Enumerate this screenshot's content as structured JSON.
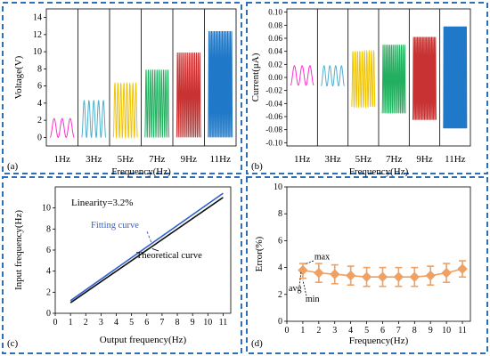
{
  "colors": {
    "frame": "#2f6fb7",
    "waves": [
      "#ff2fd0",
      "#4fb0d0",
      "#f0c400",
      "#22b060",
      "#c83232",
      "#1f78c8"
    ],
    "fit_line": "#2f5fd0",
    "theory_line": "#111111",
    "error_marker": "#f0a060"
  },
  "chart_data": [
    {
      "panel": "(a)",
      "type": "line",
      "title": "",
      "xlabel": "Frequency(Hz)",
      "ylabel": "Voltage(V)",
      "ylim": [
        -1,
        15
      ],
      "yticks": [
        0,
        2,
        4,
        6,
        8,
        10,
        12,
        14
      ],
      "categories": [
        "1Hz",
        "3Hz",
        "5Hz",
        "7Hz",
        "9Hz",
        "11Hz"
      ],
      "amplitude_min": [
        0,
        0,
        0,
        0,
        0,
        0
      ],
      "amplitude_max": [
        2.2,
        4.3,
        6.3,
        7.9,
        9.9,
        12.4
      ],
      "cycles": [
        3,
        5,
        8,
        11,
        14,
        18
      ]
    },
    {
      "panel": "(b)",
      "type": "line",
      "title": "",
      "xlabel": "Frequency(Hz)",
      "ylabel": "Current(μA)",
      "ylim": [
        -0.105,
        0.105
      ],
      "yticks": [
        -0.1,
        -0.08,
        -0.06,
        -0.04,
        -0.02,
        0.0,
        0.02,
        0.04,
        0.06,
        0.08,
        0.1
      ],
      "ytick_labels": [
        "-0.10",
        "-0.08",
        "-0.06",
        "-0.04",
        "-0.02",
        "0.00",
        "0.02",
        "0.04",
        "0.06",
        "0.08",
        "0.10"
      ],
      "categories": [
        "1Hz",
        "3Hz",
        "5Hz",
        "7Hz",
        "9Hz",
        "11Hz"
      ],
      "amplitude_min": [
        -0.012,
        -0.013,
        -0.045,
        -0.055,
        -0.065,
        -0.078
      ],
      "amplitude_max": [
        0.018,
        0.018,
        0.04,
        0.05,
        0.062,
        0.078
      ],
      "cycles": [
        3,
        4,
        10,
        14,
        18,
        30
      ]
    },
    {
      "panel": "(c)",
      "type": "line",
      "title": "",
      "xlabel": "Output frequency(Hz)",
      "ylabel": "Input frequency(Hz)",
      "xlim": [
        0,
        11.5
      ],
      "ylim": [
        0,
        12
      ],
      "xticks": [
        0,
        1,
        2,
        3,
        4,
        5,
        6,
        7,
        8,
        9,
        10,
        11
      ],
      "yticks": [
        0,
        2,
        4,
        6,
        8,
        10
      ],
      "annotation": "Linearity=3.2%",
      "series": [
        {
          "name": "Fitting curve",
          "x": [
            1,
            11
          ],
          "y": [
            1.2,
            11.4
          ]
        },
        {
          "name": "Theoretical curve",
          "x": [
            1,
            11
          ],
          "y": [
            1.0,
            11.0
          ]
        }
      ]
    },
    {
      "panel": "(d)",
      "type": "scatter",
      "title": "",
      "xlabel": "Frequency(Hz)",
      "ylabel": "Error(%)",
      "xlim": [
        0,
        11.5
      ],
      "ylim": [
        0,
        10
      ],
      "xticks": [
        0,
        1,
        2,
        3,
        4,
        5,
        6,
        7,
        8,
        9,
        10,
        11
      ],
      "yticks": [
        0,
        2,
        4,
        6,
        8,
        10
      ],
      "annotations": [
        "max",
        "avg",
        "min"
      ],
      "x": [
        1,
        2,
        3,
        4,
        5,
        6,
        7,
        8,
        9,
        10,
        11
      ],
      "y": [
        3.8,
        3.6,
        3.5,
        3.4,
        3.3,
        3.3,
        3.3,
        3.3,
        3.4,
        3.6,
        3.9
      ],
      "y_min": [
        3.2,
        2.9,
        2.8,
        2.7,
        2.6,
        2.6,
        2.6,
        2.6,
        2.7,
        2.9,
        3.3
      ],
      "y_max": [
        4.3,
        4.3,
        4.2,
        4.1,
        4.0,
        4.0,
        4.0,
        4.0,
        4.1,
        4.3,
        4.5
      ]
    }
  ]
}
